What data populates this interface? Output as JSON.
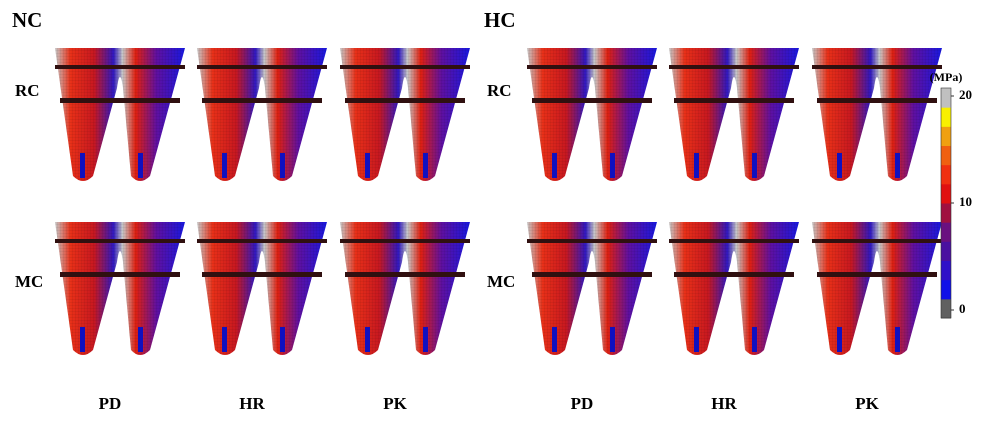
{
  "panels": [
    {
      "title": "NC",
      "rows": [
        "RC",
        "MC"
      ],
      "columns": [
        "PD",
        "HR",
        "PK"
      ]
    },
    {
      "title": "HC",
      "rows": [
        "RC",
        "MC"
      ],
      "columns": [
        "PD",
        "HR",
        "PK"
      ]
    }
  ],
  "colorbar": {
    "unit": "(MPa)",
    "range": [
      0,
      20
    ],
    "ticks": [
      20,
      10,
      0
    ],
    "colors": [
      "#606060",
      "#1010e8",
      "#3010c8",
      "#4a10a0",
      "#6a1080",
      "#a01040",
      "#e01010",
      "#f03010",
      "#f06010",
      "#f0a010",
      "#f8f000",
      "#c0c0c0"
    ]
  }
}
